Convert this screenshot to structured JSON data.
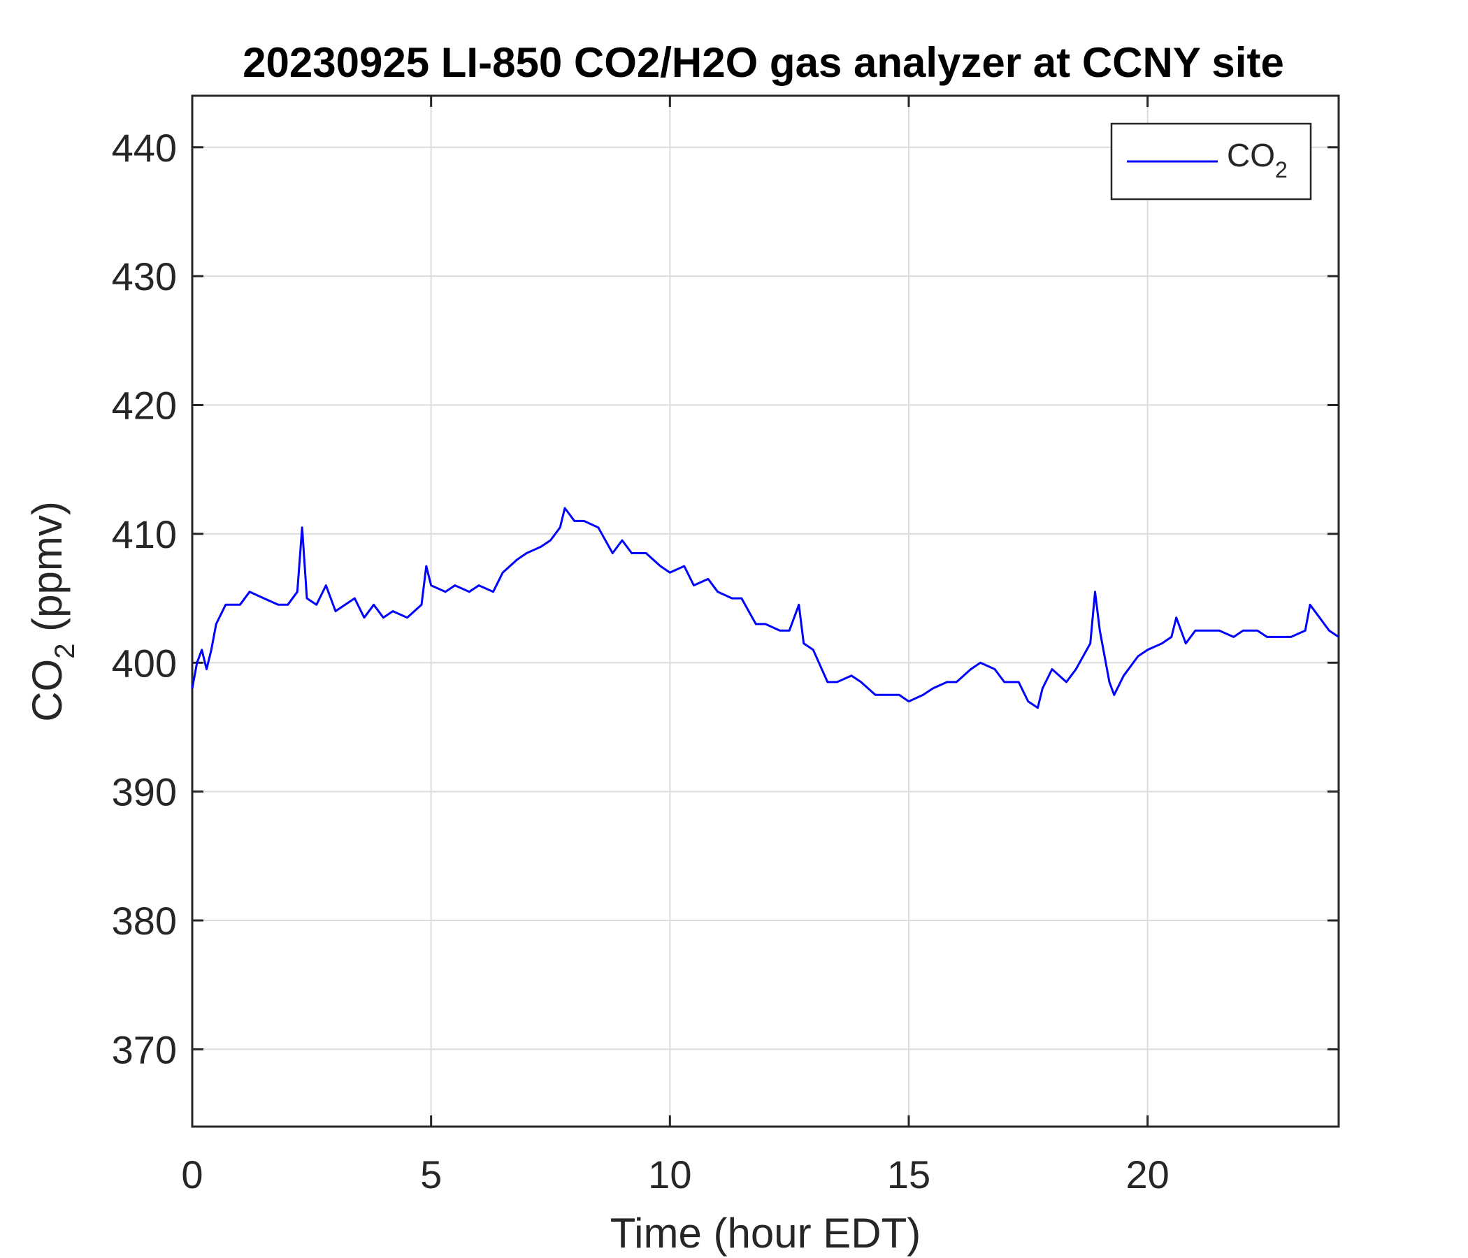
{
  "chart_data": {
    "type": "line",
    "title": "20230925 LI-850 CO2/H2O gas analyzer at CCNY site",
    "xlabel": "Time (hour EDT)",
    "ylabel": {
      "prefix": "CO",
      "subscript": "2",
      "suffix": " (ppmv)"
    },
    "xlim": [
      0,
      24
    ],
    "ylim": [
      364,
      444
    ],
    "x_ticks": [
      0,
      5,
      10,
      15,
      20
    ],
    "y_ticks": [
      370,
      380,
      390,
      400,
      410,
      420,
      430,
      440
    ],
    "grid": true,
    "legend_position": "top-right",
    "series": [
      {
        "name": {
          "prefix": "CO",
          "subscript": "2"
        },
        "color": "#0000ff",
        "x": [
          0,
          0.1,
          0.2,
          0.3,
          0.4,
          0.5,
          0.7,
          1.0,
          1.2,
          1.5,
          1.8,
          2.0,
          2.2,
          2.3,
          2.4,
          2.6,
          2.8,
          3.0,
          3.2,
          3.4,
          3.6,
          3.8,
          4.0,
          4.2,
          4.5,
          4.8,
          4.9,
          5.0,
          5.3,
          5.5,
          5.8,
          6.0,
          6.3,
          6.5,
          6.8,
          7.0,
          7.3,
          7.5,
          7.7,
          7.8,
          8.0,
          8.2,
          8.5,
          8.8,
          9.0,
          9.2,
          9.5,
          9.8,
          10.0,
          10.3,
          10.5,
          10.8,
          11.0,
          11.3,
          11.5,
          11.8,
          12.0,
          12.3,
          12.5,
          12.7,
          12.8,
          13.0,
          13.3,
          13.5,
          13.8,
          14.0,
          14.3,
          14.5,
          14.8,
          15.0,
          15.3,
          15.5,
          15.8,
          16.0,
          16.3,
          16.5,
          16.8,
          17.0,
          17.3,
          17.5,
          17.7,
          17.8,
          18.0,
          18.3,
          18.5,
          18.8,
          18.9,
          19.0,
          19.2,
          19.3,
          19.5,
          19.8,
          20.0,
          20.3,
          20.5,
          20.6,
          20.8,
          21.0,
          21.3,
          21.5,
          21.8,
          22.0,
          22.3,
          22.5,
          22.8,
          23.0,
          23.3,
          23.4,
          23.6,
          23.8,
          24.0
        ],
        "y": [
          398,
          400,
          401,
          399.5,
          401,
          403,
          404.5,
          404.5,
          405.5,
          405,
          404.5,
          404.5,
          405.5,
          410.5,
          405,
          404.5,
          406,
          404,
          404.5,
          405,
          403.5,
          404.5,
          403.5,
          404,
          403.5,
          404.5,
          407.5,
          406,
          405.5,
          406,
          405.5,
          406,
          405.5,
          407,
          408,
          408.5,
          409,
          409.5,
          410.5,
          412,
          411,
          411,
          410.5,
          408.5,
          409.5,
          408.5,
          408.5,
          407.5,
          407,
          407.5,
          406,
          406.5,
          405.5,
          405,
          405,
          403,
          403,
          402.5,
          402.5,
          404.5,
          401.5,
          401,
          398.5,
          398.5,
          399,
          398.5,
          397.5,
          397.5,
          397.5,
          397,
          397.5,
          398,
          398.5,
          398.5,
          399.5,
          400,
          399.5,
          398.5,
          398.5,
          397,
          396.5,
          398,
          399.5,
          398.5,
          399.5,
          401.5,
          405.5,
          402.5,
          398.5,
          397.5,
          399,
          400.5,
          401,
          401.5,
          402,
          403.5,
          401.5,
          402.5,
          402.5,
          402.5,
          402,
          402.5,
          402.5,
          402,
          402,
          402,
          402.5,
          404.5,
          403.5,
          402.5,
          402
        ]
      }
    ]
  }
}
